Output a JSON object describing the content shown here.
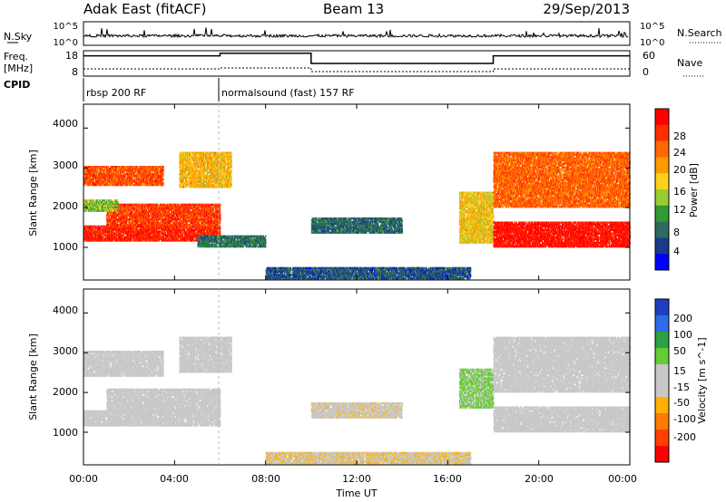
{
  "header": {
    "station": "Adak East (fitACF)",
    "beam": "Beam 13",
    "date": "29/Sep/2013"
  },
  "noise_panel": {
    "left_label": "N.Sky",
    "right_label": "N.Search",
    "left_ticks": [
      "10^5",
      "10^0"
    ],
    "right_ticks": [
      "10^5",
      "10^0"
    ]
  },
  "freq_panel": {
    "left_label_top": "Freq.",
    "left_label_bottom": "[MHz]",
    "right_label": "Nave",
    "left_ticks": [
      "18",
      "8"
    ],
    "right_ticks": [
      "60",
      "0"
    ]
  },
  "cpid_panel": {
    "label": "CPID",
    "segments": [
      {
        "label": "rbsp 200 RF",
        "start_hour": 0
      },
      {
        "label": "normalsound (fast) 157 RF",
        "start_hour": 6
      }
    ]
  },
  "x_axis": {
    "label": "Time UT",
    "ticks": [
      "00:00",
      "04:00",
      "08:00",
      "12:00",
      "16:00",
      "20:00",
      "00:00"
    ]
  },
  "power_panel": {
    "ylabel": "Slant Range [km]",
    "yticks": [
      "4000",
      "3000",
      "2000",
      "1000"
    ],
    "colorbar_label": "Power [dB]",
    "colorbar_ticks": [
      "28",
      "24",
      "20",
      "16",
      "12",
      "8",
      "4"
    ],
    "colorbar_colors": [
      "#ff0000",
      "#ff3000",
      "#ff6a00",
      "#ff9a00",
      "#ffd21a",
      "#99cc33",
      "#339933",
      "#2e6b5e",
      "#1a3b8a",
      "#0000ff"
    ]
  },
  "velocity_panel": {
    "ylabel": "Slant Range [km]",
    "yticks": [
      "4000",
      "3000",
      "2000",
      "1000"
    ],
    "colorbar_label": "Velocity [m s^-1]",
    "colorbar_ticks": [
      "200",
      "100",
      "50",
      "15",
      "-15",
      "-50",
      "-100",
      "-200"
    ],
    "colorbar_colors": [
      "#1f3fbf",
      "#2e6be6",
      "#2ea043",
      "#66cc33",
      "#c8c8c8",
      "#c8c8c8",
      "#ffb000",
      "#ff7a00",
      "#ff4000",
      "#ff0000"
    ]
  },
  "chart_data": [
    {
      "type": "line",
      "title": "Frequency",
      "x_unit": "hour UT",
      "ylabel": "Freq. [MHz]",
      "ylim": [
        8,
        18
      ],
      "series": [
        {
          "x": [
            0,
            6,
            6,
            10,
            10,
            18,
            18,
            24
          ],
          "y": [
            16,
            16,
            17,
            17,
            13,
            13,
            16,
            16
          ]
        }
      ]
    },
    {
      "type": "heatmap",
      "title": "Power",
      "x_unit": "hour UT",
      "xlim": [
        0,
        24
      ],
      "ylabel": "Slant Range [km]",
      "ylim": [
        180,
        4600
      ],
      "colorbar": {
        "label": "Power [dB]",
        "range": [
          0,
          30
        ]
      },
      "regions": [
        {
          "t0": 0.0,
          "t1": 6.0,
          "r0": 1150,
          "r1": 1550,
          "value": 27
        },
        {
          "t0": 1.0,
          "t1": 6.0,
          "r0": 1500,
          "r1": 2100,
          "value": 25
        },
        {
          "t0": 0.0,
          "t1": 3.5,
          "r0": 2550,
          "r1": 3050,
          "value": 24
        },
        {
          "t0": 0.0,
          "t1": 1.5,
          "r0": 1900,
          "r1": 2200,
          "value": 13
        },
        {
          "t0": 4.2,
          "t1": 6.5,
          "r0": 2500,
          "r1": 3400,
          "value": 18
        },
        {
          "t0": 5.0,
          "t1": 8.0,
          "r0": 1000,
          "r1": 1300,
          "value": 8
        },
        {
          "t0": 10.0,
          "t1": 14.0,
          "r0": 1350,
          "r1": 1750,
          "value": 7
        },
        {
          "t0": 16.5,
          "t1": 18.0,
          "r0": 1100,
          "r1": 2400,
          "value": 17
        },
        {
          "t0": 18.0,
          "t1": 24.0,
          "r0": 1000,
          "r1": 1650,
          "value": 28
        },
        {
          "t0": 18.0,
          "t1": 24.0,
          "r0": 2000,
          "r1": 3400,
          "value": 23
        },
        {
          "t0": 8.0,
          "t1": 17.0,
          "r0": 200,
          "r1": 500,
          "value": 6
        }
      ]
    },
    {
      "type": "heatmap",
      "title": "Velocity",
      "x_unit": "hour UT",
      "xlim": [
        0,
        24
      ],
      "ylabel": "Slant Range [km]",
      "ylim": [
        180,
        4600
      ],
      "colorbar": {
        "label": "Velocity [m s^-1]",
        "range": [
          -250,
          250
        ]
      },
      "regions": [
        {
          "t0": 0.0,
          "t1": 6.0,
          "r0": 1150,
          "r1": 1550,
          "value": 0
        },
        {
          "t0": 1.0,
          "t1": 6.0,
          "r0": 1500,
          "r1": 2100,
          "value": 0
        },
        {
          "t0": 0.0,
          "t1": 3.5,
          "r0": 2400,
          "r1": 3050,
          "value": 0
        },
        {
          "t0": 4.2,
          "t1": 6.5,
          "r0": 2500,
          "r1": 3400,
          "value": 0
        },
        {
          "t0": 10.0,
          "t1": 14.0,
          "r0": 1350,
          "r1": 1750,
          "value": -30
        },
        {
          "t0": 16.5,
          "t1": 18.0,
          "r0": 1600,
          "r1": 2600,
          "value": 60
        },
        {
          "t0": 18.0,
          "t1": 24.0,
          "r0": 1000,
          "r1": 1650,
          "value": 0
        },
        {
          "t0": 18.0,
          "t1": 24.0,
          "r0": 2000,
          "r1": 3400,
          "value": 0
        },
        {
          "t0": 8.0,
          "t1": 17.0,
          "r0": 200,
          "r1": 500,
          "value": -40
        }
      ]
    }
  ]
}
